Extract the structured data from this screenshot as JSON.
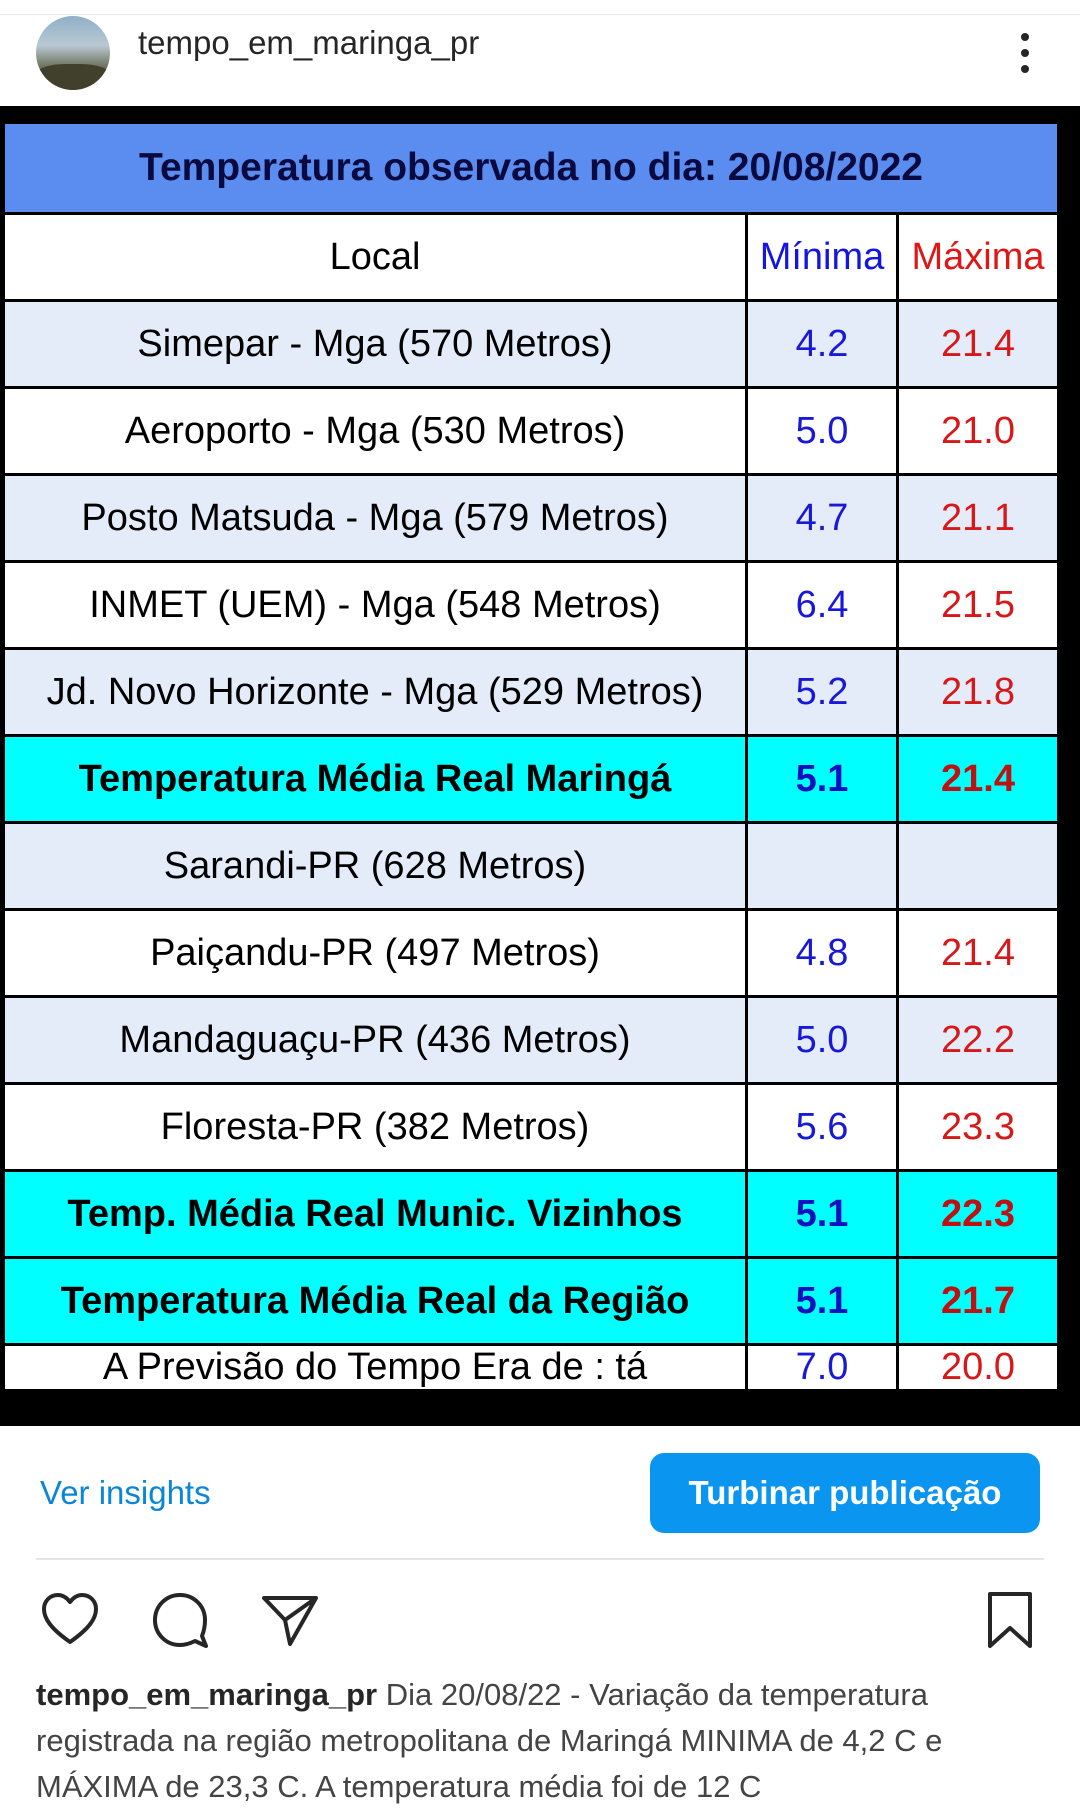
{
  "post": {
    "username": "tempo_em_maringa_pr",
    "caption_user": "tempo_em_maringa_pr",
    "caption_text": "Dia 20/08/22 - Variação da temperatura registrada na região metropolitana de Maringá MINIMA de 4,2 C e MÁXIMA de 23,3 C. A temperatura média foi de 12 C"
  },
  "table": {
    "title": "Temperatura observada no dia: 20/08/2022",
    "headers": {
      "local": "Local",
      "min": "Mínima",
      "max": "Máxima"
    },
    "rows": [
      {
        "local": "Simepar - Mga  (570 Metros)",
        "min": "4.2",
        "max": "21.4"
      },
      {
        "local": "Aeroporto - Mga (530 Metros)",
        "min": "5.0",
        "max": "21.0"
      },
      {
        "local": "Posto Matsuda - Mga (579 Metros)",
        "min": "4.7",
        "max": "21.1"
      },
      {
        "local": "INMET (UEM) - Mga  (548 Metros)",
        "min": "6.4",
        "max": "21.5"
      },
      {
        "local": "Jd. Novo Horizonte - Mga (529 Metros)",
        "min": "5.2",
        "max": "21.8"
      },
      {
        "local": "Temperatura Média Real Maringá",
        "min": "5.1",
        "max": "21.4"
      },
      {
        "local": "Sarandi-PR  (628 Metros)",
        "min": "",
        "max": ""
      },
      {
        "local": "Paiçandu-PR (497 Metros)",
        "min": "4.8",
        "max": "21.4"
      },
      {
        "local": "Mandaguaçu-PR (436 Metros)",
        "min": "5.0",
        "max": "22.2"
      },
      {
        "local": "Floresta-PR (382 Metros)",
        "min": "5.6",
        "max": "23.3"
      },
      {
        "local": "Temp. Média Real Munic. Vizinhos",
        "min": "5.1",
        "max": "22.3"
      },
      {
        "local": "Temperatura Média Real da Região",
        "min": "5.1",
        "max": "21.7"
      },
      {
        "local": "A Previsão do Tempo Era de : tá",
        "min": "7.0",
        "max": "20.0"
      }
    ]
  },
  "actions": {
    "insights_label": "Ver insights",
    "boost_label": "Turbinar publicação",
    "icons": [
      "heart-icon",
      "comment-icon",
      "share-icon",
      "bookmark-icon"
    ]
  },
  "colors": {
    "title_bg": "#5b8df0",
    "highlight_bg": "#00ffff",
    "min_color": "#1818d8",
    "max_color": "#d81818",
    "boost_bg": "#0a95f0",
    "link_color": "#0a86d8"
  }
}
